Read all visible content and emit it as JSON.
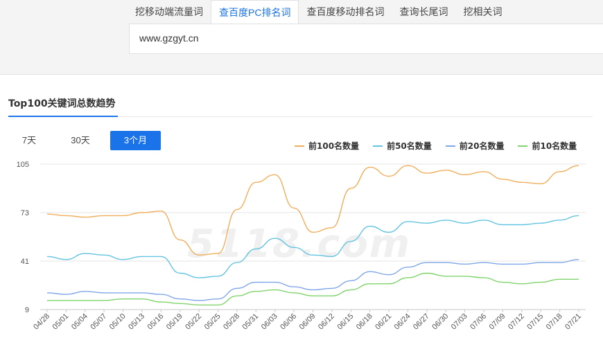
{
  "tabs": [
    {
      "label": "挖移动端流量词",
      "active": false
    },
    {
      "label": "查百度PC排名词",
      "active": true
    },
    {
      "label": "查百度移动排名词",
      "active": false
    },
    {
      "label": "查询长尾词",
      "active": false
    },
    {
      "label": "挖相关词",
      "active": false
    }
  ],
  "search": {
    "value": "www.gzgyt.cn"
  },
  "section": {
    "title": "Top100关键词总数趋势"
  },
  "ranges": [
    {
      "label": "7天",
      "active": false
    },
    {
      "label": "30天",
      "active": false
    },
    {
      "label": "3个月",
      "active": true
    }
  ],
  "watermark": "5118.com",
  "colors": {
    "top100": "#f0ad5a",
    "top50": "#62c4e0",
    "top20": "#7ea6e8",
    "top10": "#7fd36b",
    "accent": "#1a73e8"
  },
  "chart_data": {
    "type": "line",
    "x": [
      "04/28",
      "05/01",
      "05/04",
      "05/07",
      "05/10",
      "05/13",
      "05/16",
      "05/19",
      "05/22",
      "05/25",
      "05/28",
      "05/31",
      "06/03",
      "06/06",
      "06/09",
      "06/12",
      "06/15",
      "06/18",
      "06/21",
      "06/24",
      "06/27",
      "06/30",
      "07/03",
      "07/06",
      "07/09",
      "07/12",
      "07/15",
      "07/18",
      "07/21"
    ],
    "ylim": [
      9,
      105
    ],
    "yticks": [
      9,
      41,
      73,
      105
    ],
    "grid": true,
    "legend_position": "top-right",
    "series": [
      {
        "name": "前100名数量",
        "color": "#f0ad5a",
        "values": [
          72,
          71,
          70,
          71,
          71,
          73,
          74,
          55,
          45,
          46,
          75,
          93,
          98,
          76,
          60,
          63,
          89,
          103,
          97,
          104,
          99,
          101,
          98,
          100,
          95,
          93,
          92,
          100,
          104
        ]
      },
      {
        "name": "前50名数量",
        "color": "#62c4e0",
        "values": [
          44,
          42,
          46,
          45,
          42,
          44,
          44,
          33,
          30,
          31,
          40,
          49,
          56,
          50,
          45,
          44,
          54,
          64,
          60,
          67,
          66,
          68,
          66,
          68,
          65,
          65,
          66,
          68,
          71
        ]
      },
      {
        "name": "前20名数量",
        "color": "#7ea6e8",
        "values": [
          20,
          19,
          21,
          20,
          20,
          20,
          19,
          16,
          15,
          16,
          23,
          27,
          27,
          24,
          22,
          23,
          28,
          34,
          32,
          37,
          40,
          40,
          39,
          40,
          39,
          39,
          40,
          40,
          42
        ]
      },
      {
        "name": "前10名数量",
        "color": "#7fd36b",
        "values": [
          15,
          15,
          15,
          15,
          16,
          16,
          14,
          13,
          12,
          12,
          18,
          21,
          22,
          20,
          18,
          18,
          22,
          26,
          26,
          30,
          33,
          31,
          31,
          30,
          27,
          26,
          27,
          29,
          29
        ]
      }
    ]
  }
}
